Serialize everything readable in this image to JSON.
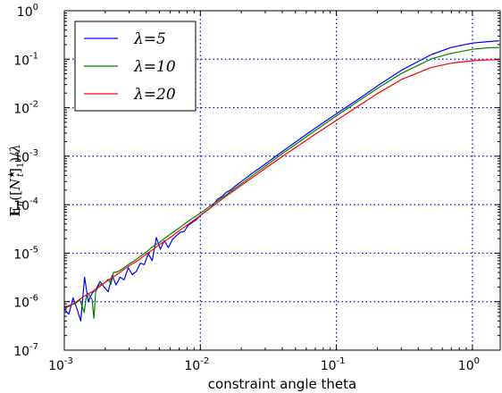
{
  "chart_data": {
    "type": "line",
    "xscale": "log",
    "yscale": "log",
    "xlim": [
      0.001,
      1.6
    ],
    "ylim": [
      1e-07,
      1
    ],
    "xlabel": "constraint angle theta",
    "ylabel": "E_π([N_t^★]_1)/λ",
    "grid": true,
    "legend_position": "top-left",
    "x_ticks": [
      {
        "value": 0.001,
        "label": "10",
        "exp": "-3"
      },
      {
        "value": 0.01,
        "label": "10",
        "exp": "-2"
      },
      {
        "value": 0.1,
        "label": "10",
        "exp": "-1"
      },
      {
        "value": 1,
        "label": "10",
        "exp": "0"
      }
    ],
    "y_ticks": [
      {
        "value": 1e-07,
        "label": "10",
        "exp": "-7"
      },
      {
        "value": 1e-06,
        "label": "10",
        "exp": "-6"
      },
      {
        "value": 1e-05,
        "label": "10",
        "exp": "-5"
      },
      {
        "value": 0.0001,
        "label": "10",
        "exp": "-4"
      },
      {
        "value": 0.001,
        "label": "10",
        "exp": "-3"
      },
      {
        "value": 0.01,
        "label": "10",
        "exp": "-2"
      },
      {
        "value": 0.1,
        "label": "10",
        "exp": "-1"
      },
      {
        "value": 1,
        "label": "10",
        "exp": "0"
      }
    ],
    "series": [
      {
        "name": "λ=5",
        "color": "#0000ff",
        "points": [
          [
            0.001,
            7e-07
          ],
          [
            0.00108,
            5.5e-07
          ],
          [
            0.00116,
            1.2e-06
          ],
          [
            0.00124,
            7e-07
          ],
          [
            0.00132,
            4e-07
          ],
          [
            0.00141,
            3.2e-06
          ],
          [
            0.0015,
            1e-06
          ],
          [
            0.0016,
            1.5e-06
          ],
          [
            0.00171,
            1.8e-06
          ],
          [
            0.00183,
            2.6e-06
          ],
          [
            0.00196,
            2e-06
          ],
          [
            0.0021,
            1.6e-06
          ],
          [
            0.00225,
            3.5e-06
          ],
          [
            0.0024,
            2.2e-06
          ],
          [
            0.00257,
            3.2e-06
          ],
          [
            0.00275,
            2.8e-06
          ],
          [
            0.00295,
            5e-06
          ],
          [
            0.00316,
            3.6e-06
          ],
          [
            0.00338,
            4.2e-06
          ],
          [
            0.00362,
            6.2e-06
          ],
          [
            0.00387,
            5.8e-06
          ],
          [
            0.00414,
            9.8e-06
          ],
          [
            0.00443,
            7e-06
          ],
          [
            0.00475,
            2.1e-05
          ],
          [
            0.00508,
            1.2e-05
          ],
          [
            0.00543,
            1.8e-05
          ],
          [
            0.00582,
            1.3e-05
          ],
          [
            0.00623,
            1.9e-05
          ],
          [
            0.00667,
            2.3e-05
          ],
          [
            0.00714,
            2.7e-05
          ],
          [
            0.0076,
            2.8e-05
          ],
          [
            0.0081,
            3.7e-05
          ],
          [
            0.0087,
            4.3e-05
          ],
          [
            0.0093,
            4.8e-05
          ],
          [
            0.01,
            6e-05
          ],
          [
            0.0107,
            7e-05
          ],
          [
            0.0115,
            8e-05
          ],
          [
            0.0123,
            9.5e-05
          ],
          [
            0.0133,
            0.000128
          ],
          [
            0.0145,
            0.00015
          ],
          [
            0.0155,
            0.00018
          ],
          [
            0.0167,
            0.0002
          ],
          [
            0.018,
            0.00024
          ],
          [
            0.02,
            0.0003
          ],
          [
            0.025,
            0.00048
          ],
          [
            0.03,
            0.00069
          ],
          [
            0.04,
            0.00125
          ],
          [
            0.05,
            0.00195
          ],
          [
            0.07,
            0.0038
          ],
          [
            0.1,
            0.0075
          ],
          [
            0.15,
            0.016
          ],
          [
            0.2,
            0.028
          ],
          [
            0.3,
            0.059
          ],
          [
            0.5,
            0.125
          ],
          [
            0.7,
            0.175
          ],
          [
            1.0,
            0.215
          ],
          [
            1.3,
            0.23
          ],
          [
            1.57,
            0.24
          ]
        ]
      },
      {
        "name": "λ=10",
        "color": "#008000",
        "points": [
          [
            0.001,
            7.5e-07
          ],
          [
            0.0011,
            8.5e-07
          ],
          [
            0.0012,
            9e-07
          ],
          [
            0.0013,
            1.1e-06
          ],
          [
            0.0014,
            6e-07
          ],
          [
            0.00145,
            1.3e-06
          ],
          [
            0.0015,
            1.5e-06
          ],
          [
            0.0016,
            1.1e-06
          ],
          [
            0.00165,
            4.5e-07
          ],
          [
            0.0017,
            1.6e-06
          ],
          [
            0.0018,
            2.2e-06
          ],
          [
            0.0019,
            2.3e-06
          ],
          [
            0.002,
            2.5e-06
          ],
          [
            0.0021,
            2.9e-06
          ],
          [
            0.0022,
            2.3e-06
          ],
          [
            0.0023,
            4e-06
          ],
          [
            0.00245,
            4.1e-06
          ],
          [
            0.0026,
            4.5e-06
          ],
          [
            0.0028,
            5.2e-06
          ],
          [
            0.003,
            6e-06
          ],
          [
            0.0032,
            6.7e-06
          ],
          [
            0.0034,
            7.5e-06
          ],
          [
            0.0036,
            8.5e-06
          ],
          [
            0.0038,
            9.5e-06
          ],
          [
            0.004,
            1.05e-05
          ],
          [
            0.0043,
            1.25e-05
          ],
          [
            0.0046,
            1.45e-05
          ],
          [
            0.005,
            1.65e-05
          ],
          [
            0.0055,
            2.05e-05
          ],
          [
            0.006,
            2.45e-05
          ],
          [
            0.007,
            3.3e-05
          ],
          [
            0.008,
            4.4e-05
          ],
          [
            0.009,
            5.5e-05
          ],
          [
            0.01,
            6.7e-05
          ],
          [
            0.012,
            9.7e-05
          ],
          [
            0.0135,
            0.000122
          ],
          [
            0.015,
            0.00015
          ],
          [
            0.02,
            0.00027
          ],
          [
            0.025,
            0.00043
          ],
          [
            0.03,
            0.00062
          ],
          [
            0.04,
            0.00113
          ],
          [
            0.05,
            0.00175
          ],
          [
            0.07,
            0.0034
          ],
          [
            0.1,
            0.0068
          ],
          [
            0.15,
            0.0145
          ],
          [
            0.2,
            0.025
          ],
          [
            0.3,
            0.051
          ],
          [
            0.5,
            0.102
          ],
          [
            0.7,
            0.132
          ],
          [
            1.0,
            0.16
          ],
          [
            1.3,
            0.172
          ],
          [
            1.57,
            0.175
          ]
        ]
      },
      {
        "name": "λ=20",
        "color": "#ff0000",
        "points": [
          [
            0.001,
            7.2e-07
          ],
          [
            0.0011,
            8.2e-07
          ],
          [
            0.0012,
            9.6e-07
          ],
          [
            0.0013,
            1.12e-06
          ],
          [
            0.0014,
            1.3e-06
          ],
          [
            0.0015,
            1.45e-06
          ],
          [
            0.0016,
            1.6e-06
          ],
          [
            0.0018,
            2e-06
          ],
          [
            0.002,
            2.5e-06
          ],
          [
            0.0022,
            3e-06
          ],
          [
            0.0025,
            3.8e-06
          ],
          [
            0.0028,
            4.8e-06
          ],
          [
            0.003,
            5.5e-06
          ],
          [
            0.0035,
            7.2e-06
          ],
          [
            0.004,
            9.5e-06
          ],
          [
            0.0045,
            1.2e-05
          ],
          [
            0.005,
            1.5e-05
          ],
          [
            0.006,
            2.1e-05
          ],
          [
            0.007,
            2.9e-05
          ],
          [
            0.008,
            3.8e-05
          ],
          [
            0.009,
            4.8e-05
          ],
          [
            0.01,
            6e-05
          ],
          [
            0.012,
            8.8e-05
          ],
          [
            0.015,
            0.00014
          ],
          [
            0.02,
            0.00025
          ],
          [
            0.025,
            0.00039
          ],
          [
            0.03,
            0.00056
          ],
          [
            0.04,
            0.00098
          ],
          [
            0.05,
            0.0015
          ],
          [
            0.07,
            0.00285
          ],
          [
            0.1,
            0.0055
          ],
          [
            0.15,
            0.0115
          ],
          [
            0.2,
            0.0195
          ],
          [
            0.3,
            0.038
          ],
          [
            0.5,
            0.068
          ],
          [
            0.7,
            0.083
          ],
          [
            1.0,
            0.093
          ],
          [
            1.3,
            0.097
          ],
          [
            1.57,
            0.098
          ]
        ]
      }
    ]
  }
}
